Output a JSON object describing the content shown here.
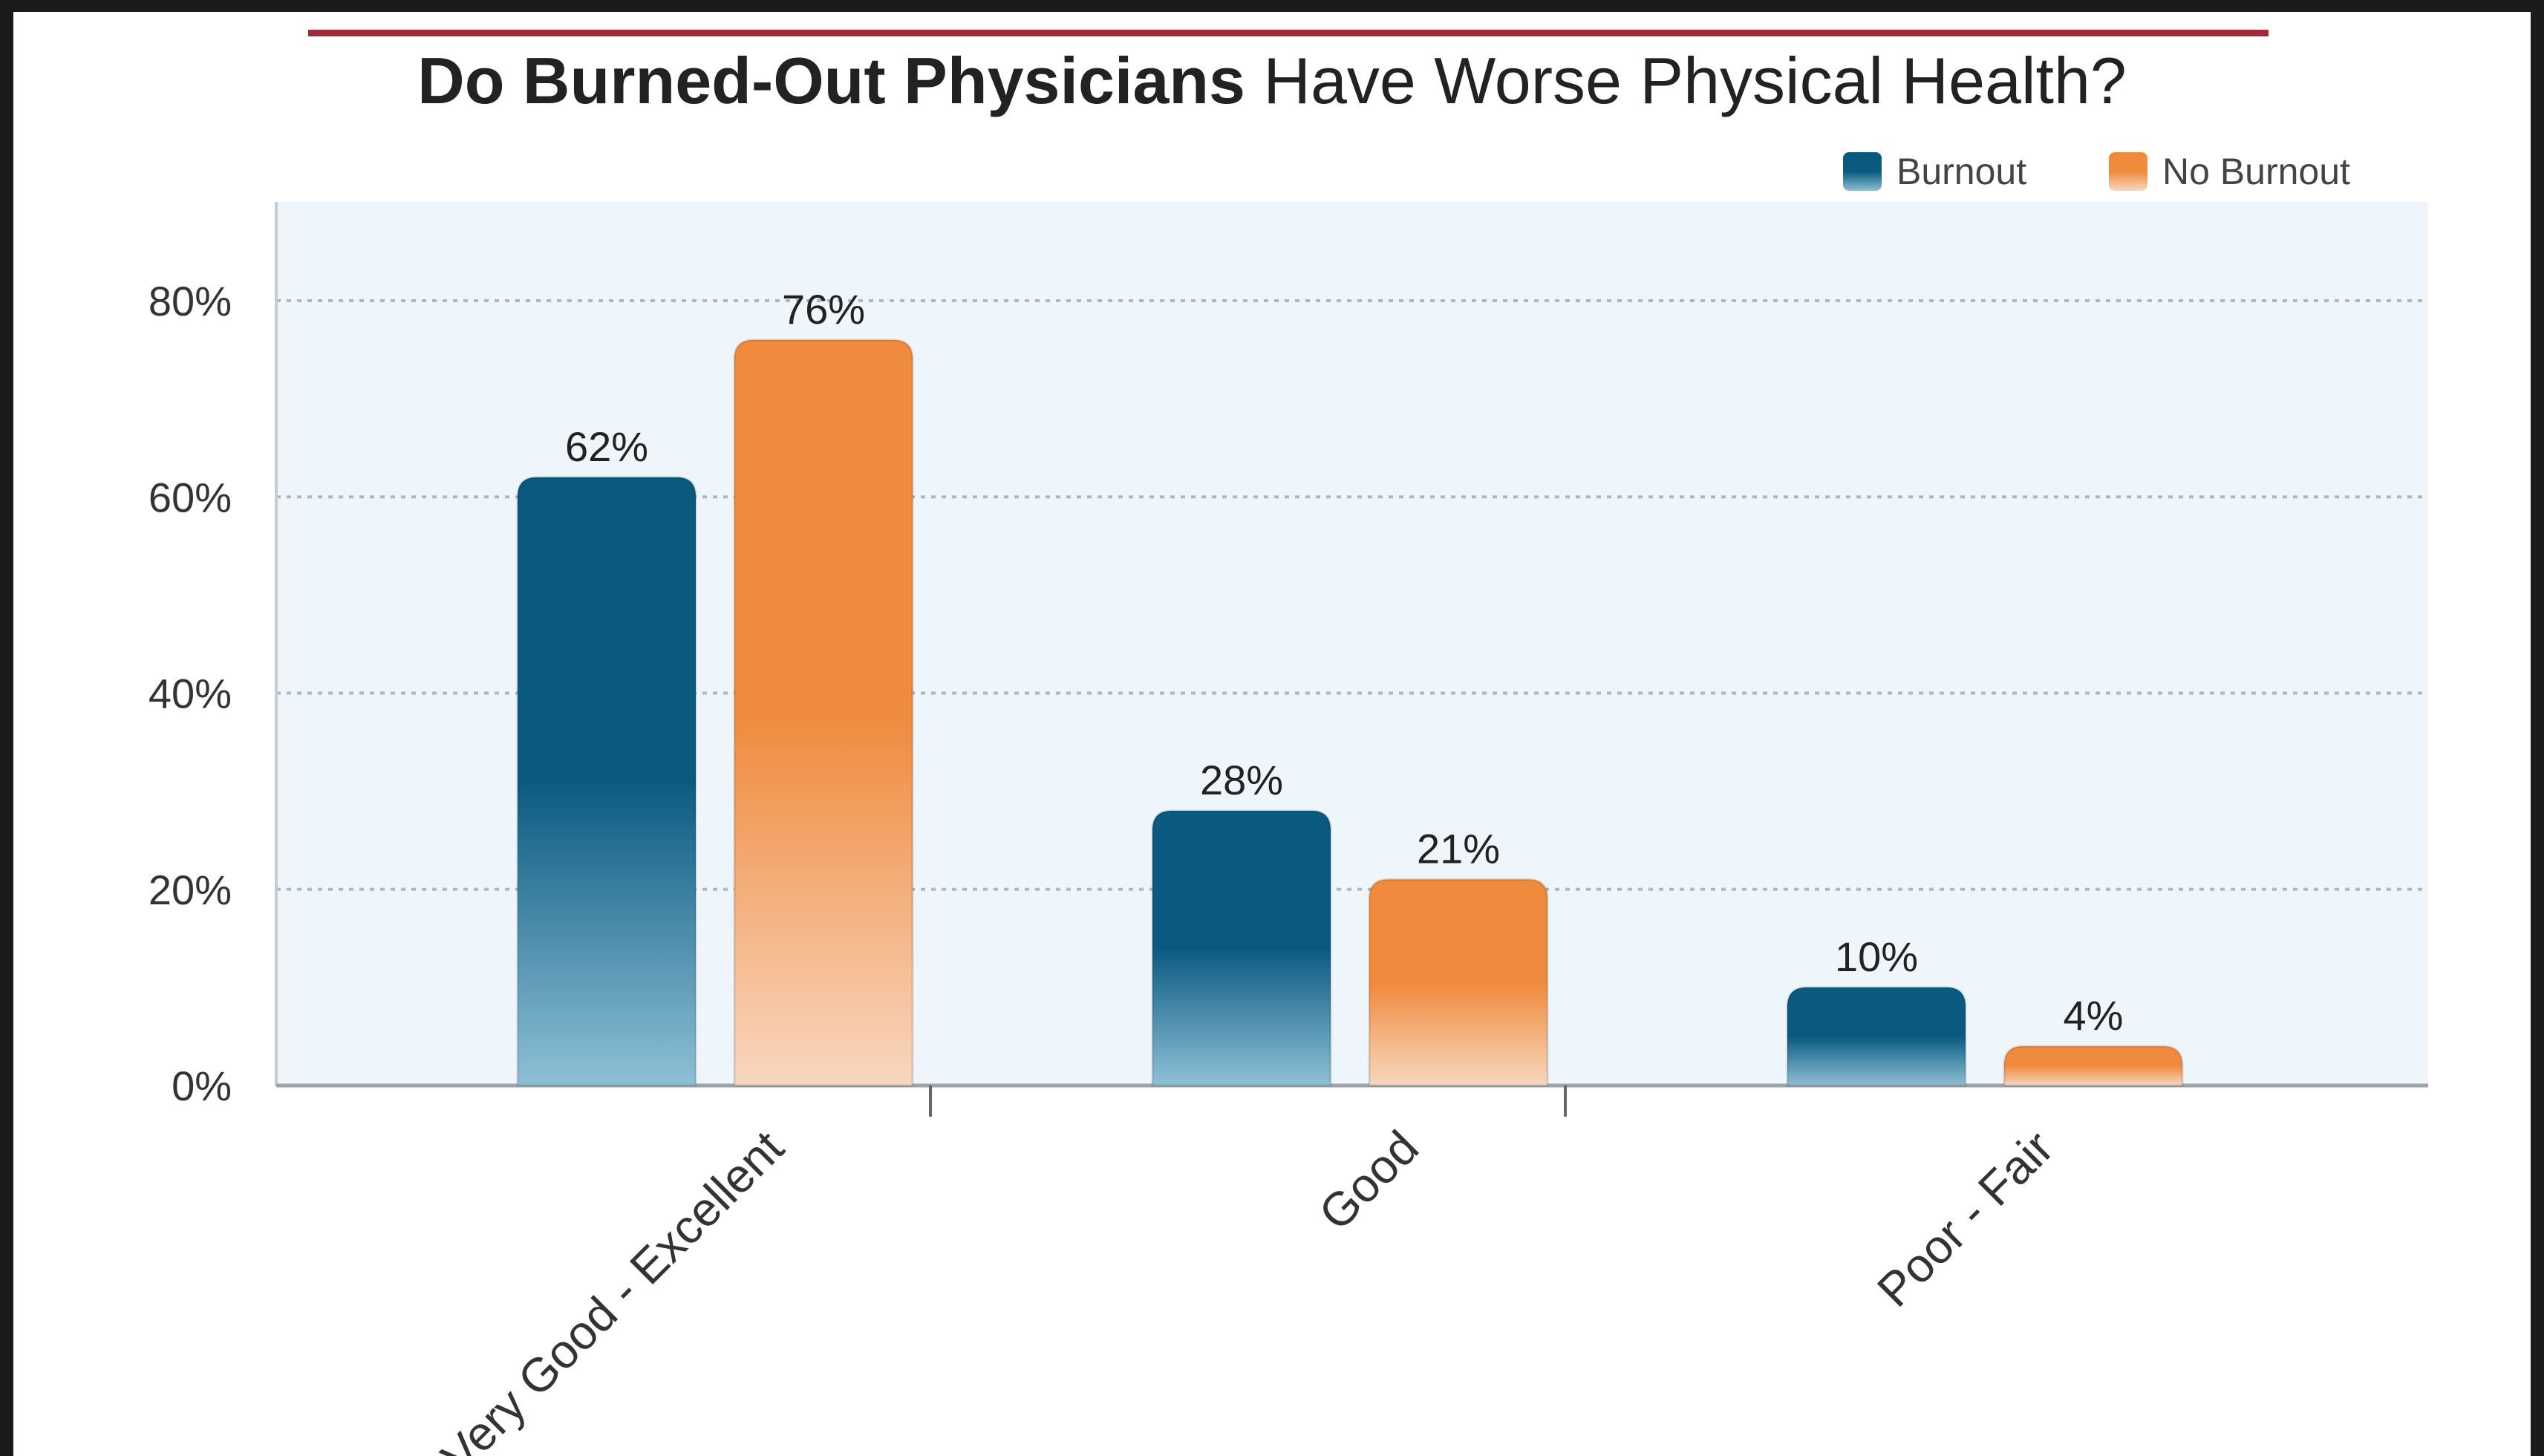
{
  "title": {
    "bold": "Do Burned-Out Physicians",
    "rest": "Have Worse Physical Health?"
  },
  "colors": {
    "burnout": "#0a5a80",
    "no_burnout": "#f08a3c",
    "rule": "#a3283a",
    "plot_bg": "#eef6fb",
    "grid": "#a9b8c2"
  },
  "chart_data": {
    "type": "bar",
    "categories": [
      "Very Good - Excellent",
      "Good",
      "Poor - Fair"
    ],
    "series": [
      {
        "name": "Burnout",
        "values": [
          62,
          28,
          10
        ],
        "labels": [
          "62%",
          "28%",
          "10%"
        ]
      },
      {
        "name": "No Burnout",
        "values": [
          76,
          21,
          4
        ],
        "labels": [
          "76%",
          "21%",
          "4%"
        ]
      }
    ],
    "ylim": [
      0,
      80
    ],
    "yticks": [
      0,
      20,
      40,
      60,
      80
    ],
    "ytick_labels": [
      "0%",
      "20%",
      "40%",
      "60%",
      "80%"
    ],
    "grid": true,
    "legend": "top-right"
  }
}
